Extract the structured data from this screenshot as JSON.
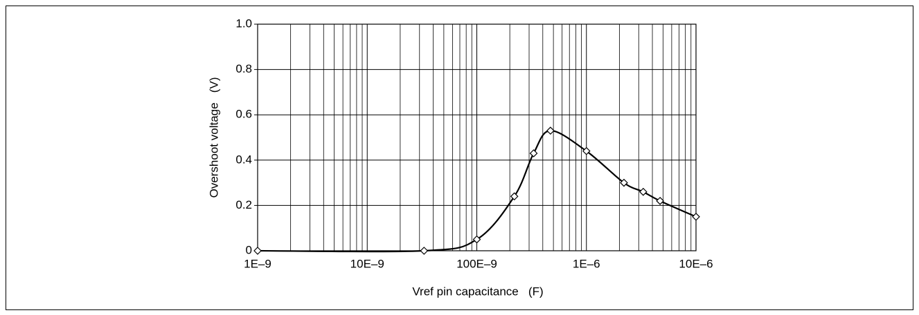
{
  "chart_data": {
    "type": "line",
    "xlabel": "Vref pin capacitance   (F)",
    "ylabel": "Overshoot voltage   (V)",
    "xscale": "log",
    "minor_grid": true,
    "grid": true,
    "smooth": true,
    "marker": "diamond",
    "x": [
      1e-09,
      3.3e-08,
      1e-07,
      2.2e-07,
      3.3e-07,
      4.7e-07,
      1e-06,
      2.2e-06,
      3.3e-06,
      4.7e-06,
      1e-05
    ],
    "series": [
      {
        "name": "Overshoot voltage",
        "color": "#000000",
        "values": [
          0,
          0,
          0.05,
          0.24,
          0.43,
          0.53,
          0.44,
          0.3,
          0.26,
          0.22,
          0.15
        ]
      }
    ],
    "xlim": [
      1e-09,
      1e-05
    ],
    "xticks": [
      {
        "value": 1e-09,
        "label": "1E–9"
      },
      {
        "value": 1e-08,
        "label": "10E–9"
      },
      {
        "value": 1e-07,
        "label": "100E–9"
      },
      {
        "value": 1e-06,
        "label": "1E–6"
      },
      {
        "value": 1e-05,
        "label": "10E–6"
      }
    ],
    "ylim": [
      0,
      1
    ],
    "yticks": [
      0,
      0.2,
      0.4,
      0.6,
      0.8,
      {
        "value": 1,
        "label": "1.0"
      }
    ]
  }
}
